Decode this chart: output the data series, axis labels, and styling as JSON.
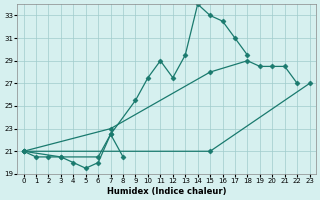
{
  "xlabel": "Humidex (Indice chaleur)",
  "ylim": [
    19,
    34
  ],
  "xlim": [
    -0.5,
    23.5
  ],
  "yticks": [
    19,
    21,
    23,
    25,
    27,
    29,
    31,
    33
  ],
  "xticks": [
    0,
    1,
    2,
    3,
    4,
    5,
    6,
    7,
    8,
    9,
    10,
    11,
    12,
    13,
    14,
    15,
    16,
    17,
    18,
    19,
    20,
    21,
    22,
    23
  ],
  "line_color": "#1a7a6e",
  "bg_color": "#d6f0ef",
  "grid_color": "#a0cccc",
  "line1_x": [
    0,
    1,
    2,
    3,
    4,
    5,
    6,
    7,
    8
  ],
  "line1_y": [
    21,
    20.5,
    20.5,
    20.5,
    20,
    19.5,
    20,
    22.5,
    20.5
  ],
  "line2_x": [
    0,
    3,
    6,
    7,
    9,
    10,
    11,
    12,
    13,
    14,
    15,
    16,
    17,
    18
  ],
  "line2_y": [
    21,
    20.5,
    20.5,
    22.5,
    25.5,
    27.5,
    29,
    27.5,
    29.5,
    34,
    33,
    32.5,
    31,
    29.5
  ],
  "line3_x": [
    0,
    7,
    15,
    18,
    19,
    20,
    21,
    22
  ],
  "line3_y": [
    21,
    23,
    28,
    29,
    28.5,
    28.5,
    28.5,
    27
  ],
  "line4_x": [
    0,
    15,
    23
  ],
  "line4_y": [
    21,
    21,
    27
  ]
}
